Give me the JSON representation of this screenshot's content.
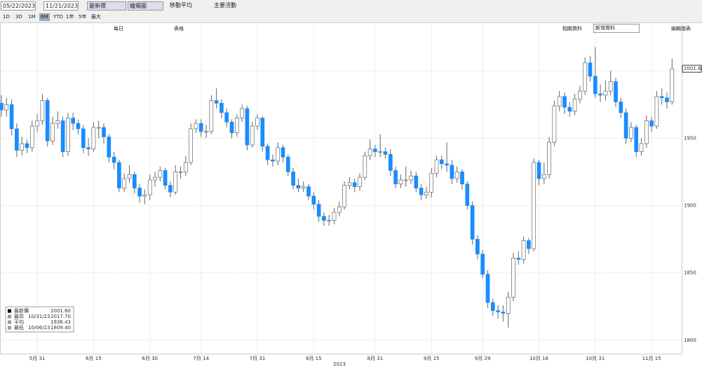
{
  "toolbar": {
    "start_date": "05/22/2023",
    "end_date": "11/21/2023",
    "field": "最新價",
    "chart_style": "蠟燭圖",
    "moving_average": "移動平均",
    "events": "主要活動",
    "ranges": [
      "1D",
      "3D",
      "1M",
      "6M",
      "YTD",
      "1年",
      "5年",
      "最大"
    ],
    "frequency": "每日",
    "table": "表格",
    "related": "相關資料",
    "add_data": "新增資料",
    "edit": "編輯圖表"
  },
  "chart_data": {
    "type": "candlestick",
    "xlabel": "2023",
    "categories": [
      null,
      null,
      null,
      null,
      null,
      null,
      null,
      "5月 31",
      null,
      null,
      null,
      null,
      null,
      null,
      null,
      null,
      null,
      null,
      "6月 15",
      null,
      null,
      null,
      null,
      null,
      null,
      null,
      null,
      null,
      null,
      "6月 30",
      null,
      null,
      null,
      null,
      null,
      null,
      null,
      null,
      null,
      "7月 14",
      null,
      null,
      null,
      null,
      null,
      null,
      null,
      null,
      null,
      null,
      "7月 31",
      null,
      null,
      null,
      null,
      null,
      null,
      null,
      null,
      null,
      null,
      "8月 15",
      null,
      null,
      null,
      null,
      null,
      null,
      null,
      null,
      null,
      null,
      null,
      "8月 31",
      null,
      null,
      null,
      null,
      null,
      null,
      null,
      null,
      null,
      null,
      "9月 15",
      null,
      null,
      null,
      null,
      null,
      null,
      null,
      null,
      null,
      "9月 29",
      null,
      null,
      null,
      null,
      null,
      null,
      null,
      null,
      null,
      null,
      "10月 16",
      null,
      null,
      null,
      null,
      null,
      null,
      null,
      null,
      null,
      null,
      "10月 31",
      null,
      null,
      null,
      null,
      null,
      null,
      null,
      null,
      null,
      null,
      "11月 15",
      null,
      null,
      null,
      null
    ],
    "open": [
      1976,
      1971,
      1975,
      1957,
      1941,
      1946,
      1943,
      1959,
      1963,
      1978,
      1948,
      1961,
      1963,
      1940,
      1965,
      1961,
      1957,
      1943,
      1942,
      1958,
      1958,
      1951,
      1936,
      1932,
      1913,
      1920,
      1923,
      1913,
      1907,
      1908,
      1919,
      1921,
      1926,
      1915,
      1910,
      1925,
      1925,
      1932,
      1957,
      1961,
      1955,
      1955,
      1978,
      1976,
      1969,
      1962,
      1954,
      1965,
      1972,
      1945,
      1959,
      1965,
      1944,
      1934,
      1933,
      1943,
      1936,
      1925,
      1915,
      1913,
      1914,
      1907,
      1901,
      1892,
      1889,
      1889,
      1895,
      1899,
      1915,
      1917,
      1914,
      1921,
      1937,
      1942,
      1940,
      1940,
      1938,
      1926,
      1916,
      1919,
      1919,
      1922,
      1913,
      1908,
      1910,
      1924,
      1934,
      1931,
      1930,
      1920,
      1925,
      1916,
      1900,
      1875,
      1864,
      1849,
      1828,
      1822,
      1821,
      1820,
      1832,
      1861,
      1860,
      1874,
      1868,
      1932,
      1920,
      1923,
      1947,
      1974,
      1981,
      1973,
      1970,
      1979,
      1985,
      2006,
      1996,
      1983,
      1982,
      1985,
      1992,
      1977,
      1969,
      1950,
      1958,
      1940,
      1946,
      1963,
      1959,
      1981,
      1980,
      1977
    ],
    "high": [
      1982,
      1980,
      1979,
      1961,
      1951,
      1949,
      1963,
      1968,
      1983,
      1980,
      1966,
      1970,
      1966,
      1969,
      1969,
      1964,
      1960,
      1950,
      1962,
      1963,
      1961,
      1953,
      1940,
      1934,
      1924,
      1930,
      1925,
      1916,
      1912,
      1923,
      1925,
      1929,
      1928,
      1918,
      1930,
      1929,
      1937,
      1961,
      1964,
      1964,
      1960,
      1982,
      1987,
      1979,
      1972,
      1964,
      1968,
      1975,
      1974,
      1962,
      1968,
      1966,
      1946,
      1938,
      1947,
      1945,
      1938,
      1928,
      1920,
      1918,
      1916,
      1910,
      1904,
      1895,
      1893,
      1898,
      1903,
      1918,
      1921,
      1920,
      1924,
      1940,
      1949,
      1945,
      1953,
      1943,
      1942,
      1929,
      1923,
      1929,
      1926,
      1925,
      1916,
      1914,
      1928,
      1937,
      1937,
      1947,
      1934,
      1929,
      1927,
      1918,
      1903,
      1878,
      1867,
      1852,
      1831,
      1826,
      1826,
      1836,
      1865,
      1866,
      1877,
      1876,
      1935,
      1934,
      1932,
      1951,
      1978,
      1985,
      1984,
      1977,
      1983,
      1989,
      2010,
      2011,
      2017.7,
      1990,
      1993,
      2000,
      1995,
      1980,
      1972,
      1962,
      1960,
      1950,
      1967,
      1966,
      1985,
      1987,
      1984,
      2009
    ],
    "low": [
      1966,
      1966,
      1952,
      1936,
      1937,
      1939,
      1940,
      1955,
      1960,
      1944,
      1945,
      1957,
      1936,
      1937,
      1956,
      1953,
      1939,
      1937,
      1940,
      1950,
      1946,
      1932,
      1927,
      1910,
      1910,
      1917,
      1909,
      1902,
      1901,
      1904,
      1914,
      1918,
      1912,
      1906,
      1908,
      1920,
      1922,
      1930,
      1954,
      1951,
      1950,
      1953,
      1972,
      1965,
      1958,
      1950,
      1951,
      1962,
      1941,
      1943,
      1956,
      1940,
      1930,
      1929,
      1930,
      1932,
      1922,
      1912,
      1910,
      1910,
      1904,
      1897,
      1888,
      1885,
      1885,
      1886,
      1892,
      1897,
      1912,
      1910,
      1911,
      1919,
      1934,
      1936,
      1936,
      1935,
      1922,
      1913,
      1913,
      1914,
      1916,
      1910,
      1904,
      1905,
      1906,
      1921,
      1927,
      1925,
      1916,
      1917,
      1912,
      1897,
      1871,
      1860,
      1846,
      1824,
      1818,
      1816,
      1814,
      1809.4,
      1829,
      1856,
      1857,
      1864,
      1866,
      1915,
      1916,
      1920,
      1944,
      1970,
      1968,
      1966,
      1967,
      1976,
      1982,
      1992,
      1980,
      1977,
      1978,
      1982,
      1973,
      1965,
      1946,
      1947,
      1936,
      1937,
      1943,
      1955,
      1957,
      1975,
      1972,
      1975
    ],
    "close": [
      1971,
      1975,
      1957,
      1941,
      1946,
      1943,
      1959,
      1963,
      1978,
      1948,
      1961,
      1963,
      1940,
      1965,
      1961,
      1957,
      1943,
      1942,
      1958,
      1958,
      1951,
      1936,
      1932,
      1913,
      1920,
      1923,
      1913,
      1907,
      1908,
      1919,
      1921,
      1926,
      1915,
      1910,
      1925,
      1925,
      1932,
      1957,
      1961,
      1955,
      1955,
      1978,
      1976,
      1969,
      1962,
      1954,
      1965,
      1972,
      1945,
      1959,
      1965,
      1944,
      1934,
      1933,
      1943,
      1936,
      1925,
      1915,
      1913,
      1914,
      1907,
      1901,
      1892,
      1889,
      1889,
      1895,
      1899,
      1915,
      1917,
      1914,
      1921,
      1937,
      1942,
      1940,
      1940,
      1938,
      1926,
      1916,
      1919,
      1919,
      1922,
      1913,
      1908,
      1910,
      1924,
      1934,
      1931,
      1930,
      1920,
      1925,
      1916,
      1900,
      1875,
      1864,
      1849,
      1828,
      1822,
      1821,
      1820,
      1832,
      1861,
      1860,
      1874,
      1868,
      1932,
      1920,
      1923,
      1947,
      1974,
      1981,
      1973,
      1970,
      1979,
      1985,
      2006,
      1996,
      1983,
      1982,
      1985,
      1992,
      1977,
      1969,
      1950,
      1958,
      1940,
      1946,
      1963,
      1959,
      1981,
      1980,
      1977,
      2001.6
    ],
    "up_color": "#ffffff",
    "down_color": "#1a8cff",
    "ylim": [
      1790,
      2036
    ],
    "yticks": [
      1800,
      1850,
      1900,
      1950,
      2000
    ],
    "grid": true,
    "stats": [
      {
        "label": "最新價",
        "value": "2001.60"
      },
      {
        "label": "最高",
        "date": "10/31/23",
        "value": "2017.70"
      },
      {
        "label": "平均",
        "value": "1936.43"
      },
      {
        "label": "最低",
        "date": "10/06/23",
        "value": "1809.40"
      }
    ]
  }
}
